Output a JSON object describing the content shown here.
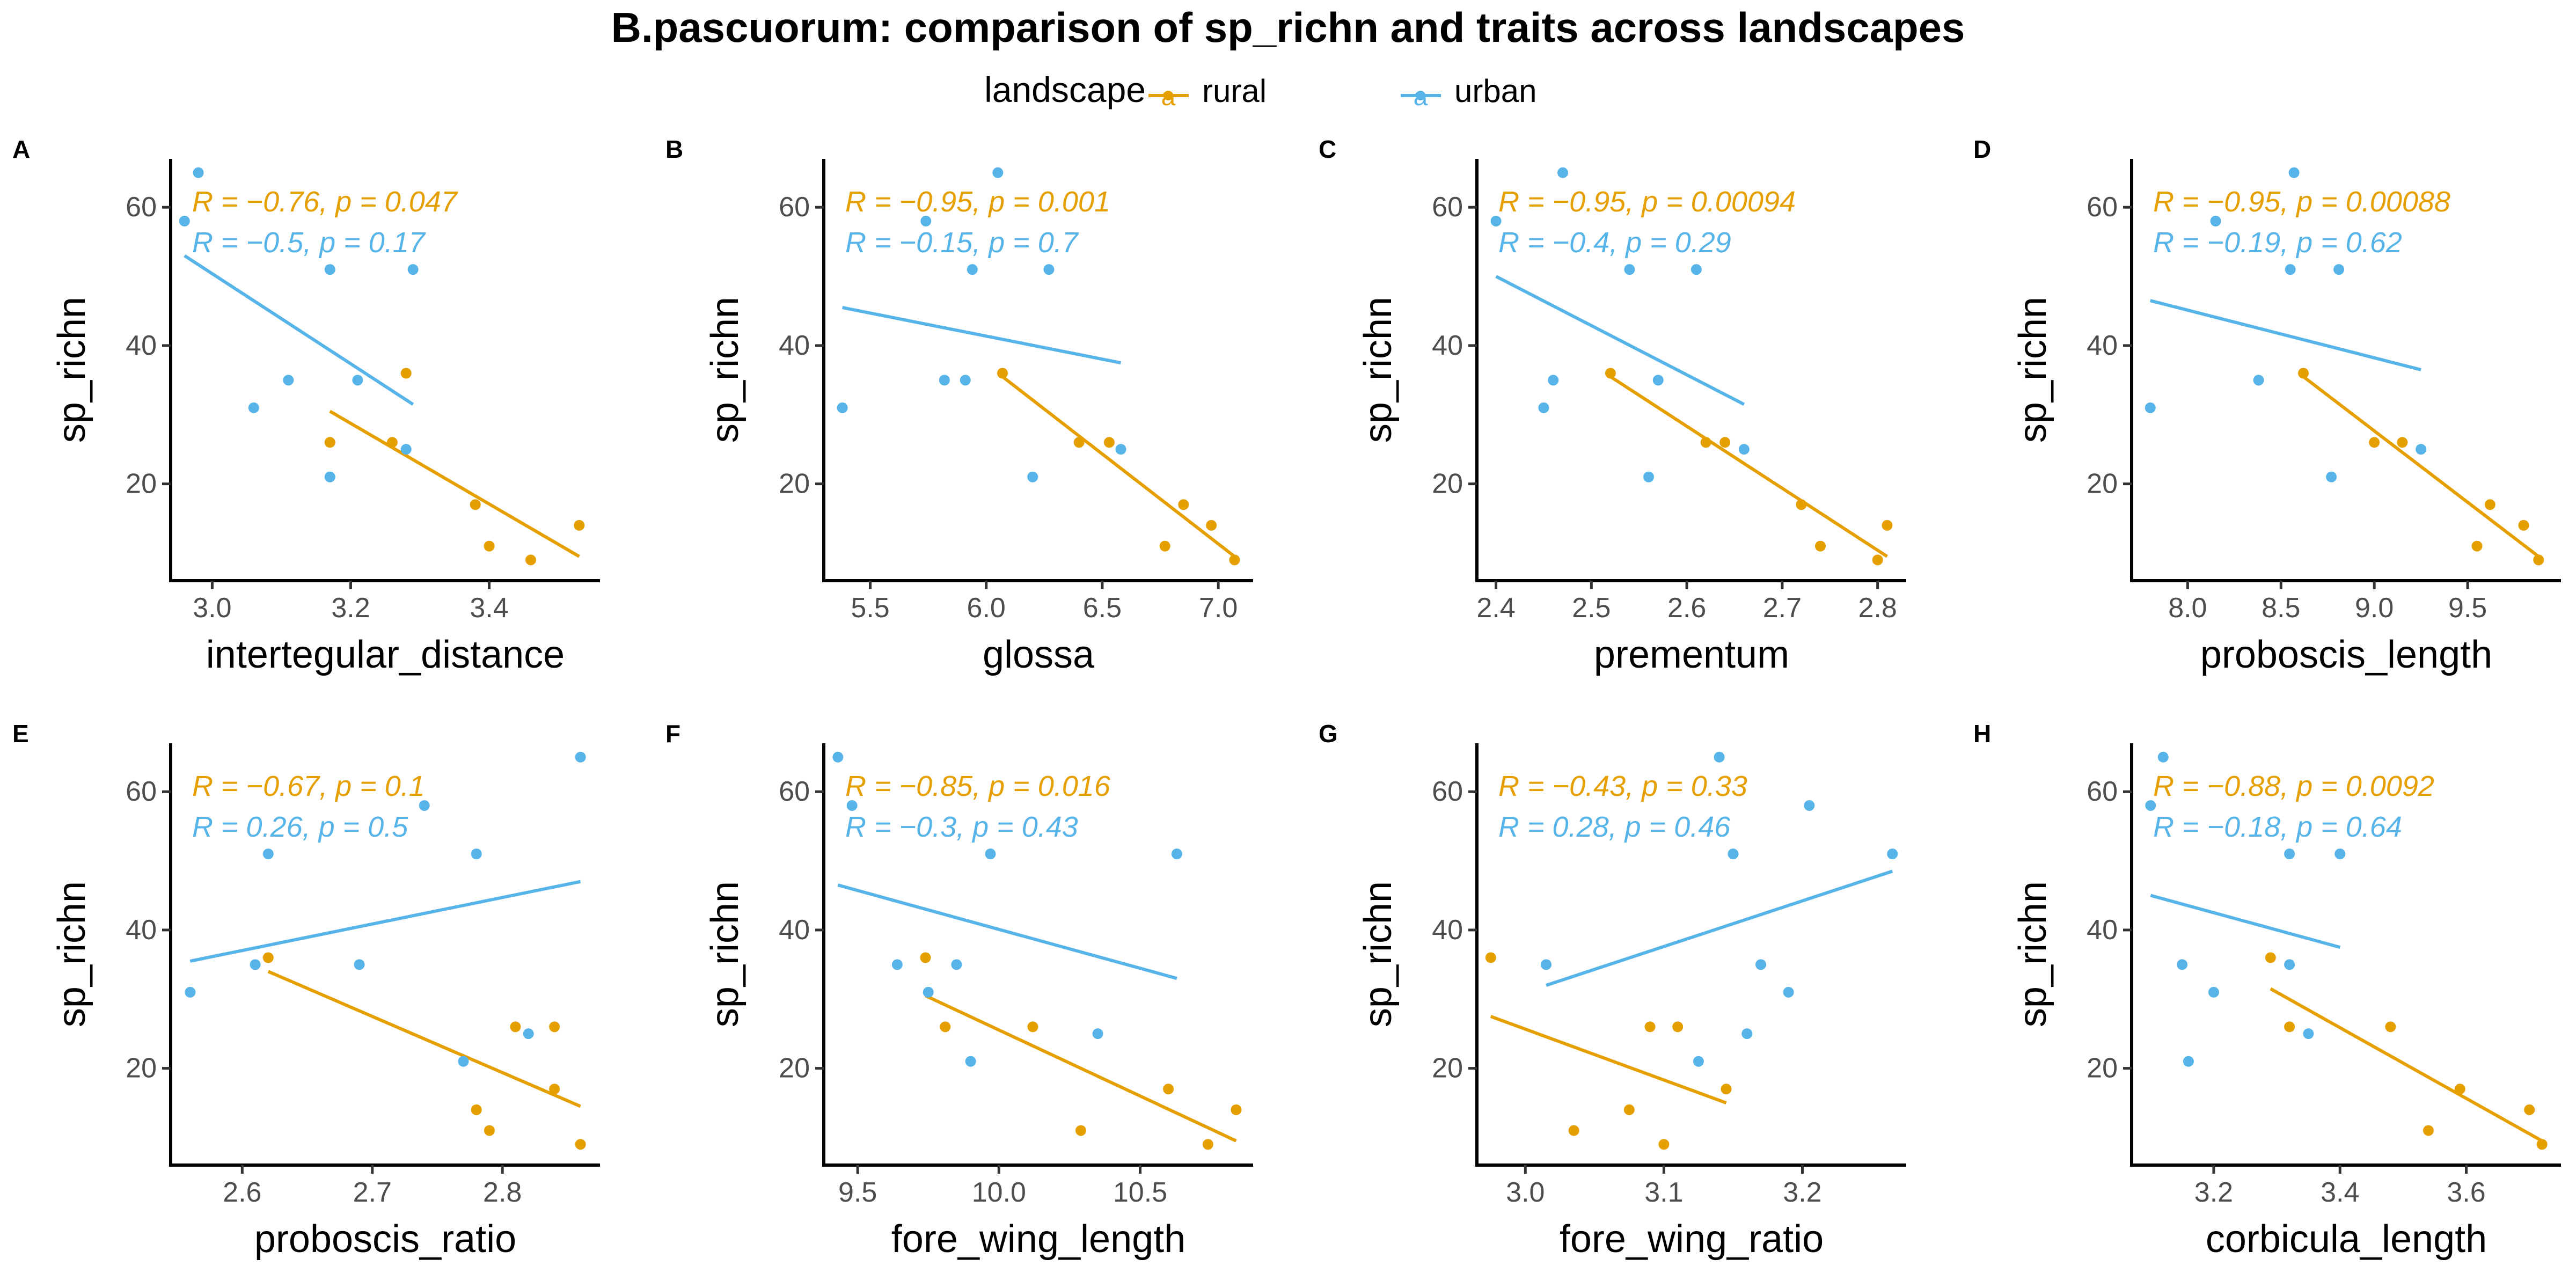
{
  "title": "B.pascuorum: comparison of sp_richn and traits across landscapes",
  "legend": {
    "title": "landscape",
    "key_glyph": "a",
    "items": [
      {
        "label": "rural",
        "color": "#E69F00"
      },
      {
        "label": "urban",
        "color": "#56B4E9"
      }
    ]
  },
  "colors": {
    "rural": "#E69F00",
    "urban": "#56B4E9"
  },
  "chart_data": [
    {
      "type": "scatter",
      "panel": "A",
      "xlabel": "intertegular_distance",
      "ylabel": "sp_richn",
      "xlim": [
        2.94,
        3.56
      ],
      "ylim": [
        6,
        67
      ],
      "xticks": [
        3.0,
        3.2,
        3.4
      ],
      "xtick_labels": [
        "3.0",
        "3.2",
        "3.4"
      ],
      "yticks": [
        20,
        40,
        60
      ],
      "ytick_labels": [
        "20",
        "40",
        "60"
      ],
      "series": [
        {
          "name": "rural",
          "x": [
            3.17,
            3.26,
            3.28,
            3.38,
            3.4,
            3.46,
            3.53
          ],
          "y": [
            26,
            26,
            36,
            17,
            11,
            9,
            14
          ],
          "fit": {
            "x": [
              3.17,
              3.53
            ],
            "y": [
              30.5,
              9.5
            ]
          },
          "stat": "R = −0.76, p = 0.047"
        },
        {
          "name": "urban",
          "x": [
            2.96,
            2.98,
            3.06,
            3.11,
            3.17,
            3.17,
            3.21,
            3.28,
            3.29
          ],
          "y": [
            58,
            65,
            31,
            35,
            51,
            21,
            35,
            25,
            51
          ],
          "fit": {
            "x": [
              2.96,
              3.29
            ],
            "y": [
              53,
              31.5
            ]
          },
          "stat": "R = −0.5, p = 0.17"
        }
      ]
    },
    {
      "type": "scatter",
      "panel": "B",
      "xlabel": "glossa",
      "ylabel": "sp_richn",
      "xlim": [
        5.3,
        7.15
      ],
      "ylim": [
        6,
        67
      ],
      "xticks": [
        5.5,
        6.0,
        6.5,
        7.0
      ],
      "xtick_labels": [
        "5.5",
        "6.0",
        "6.5",
        "7.0"
      ],
      "yticks": [
        20,
        40,
        60
      ],
      "ytick_labels": [
        "20",
        "40",
        "60"
      ],
      "series": [
        {
          "name": "rural",
          "x": [
            6.07,
            6.4,
            6.53,
            6.77,
            6.85,
            6.97,
            7.07
          ],
          "y": [
            36,
            26,
            26,
            11,
            17,
            14,
            9
          ],
          "fit": {
            "x": [
              6.07,
              7.07
            ],
            "y": [
              35.5,
              9.5
            ]
          },
          "stat": "R = −0.95, p = 0.001"
        },
        {
          "name": "urban",
          "x": [
            5.38,
            5.74,
            5.82,
            5.91,
            5.94,
            6.05,
            6.2,
            6.27,
            6.58
          ],
          "y": [
            31,
            58,
            35,
            35,
            51,
            65,
            21,
            51,
            25
          ],
          "fit": {
            "x": [
              5.38,
              6.58
            ],
            "y": [
              45.5,
              37.5
            ]
          },
          "stat": "R = −0.15, p = 0.7"
        }
      ]
    },
    {
      "type": "scatter",
      "panel": "C",
      "xlabel": "prementum",
      "ylabel": "sp_richn",
      "xlim": [
        2.38,
        2.83
      ],
      "ylim": [
        6,
        67
      ],
      "xticks": [
        2.4,
        2.5,
        2.6,
        2.7,
        2.8
      ],
      "xtick_labels": [
        "2.4",
        "2.5",
        "2.6",
        "2.7",
        "2.8"
      ],
      "yticks": [
        20,
        40,
        60
      ],
      "ytick_labels": [
        "20",
        "40",
        "60"
      ],
      "series": [
        {
          "name": "rural",
          "x": [
            2.52,
            2.62,
            2.64,
            2.72,
            2.74,
            2.8,
            2.81
          ],
          "y": [
            36,
            26,
            26,
            17,
            11,
            9,
            14
          ],
          "fit": {
            "x": [
              2.52,
              2.81
            ],
            "y": [
              35.5,
              9.5
            ]
          },
          "stat": "R = −0.95, p = 0.00094"
        },
        {
          "name": "urban",
          "x": [
            2.4,
            2.45,
            2.46,
            2.47,
            2.54,
            2.56,
            2.57,
            2.61,
            2.66
          ],
          "y": [
            58,
            31,
            35,
            65,
            51,
            21,
            35,
            51,
            25
          ],
          "fit": {
            "x": [
              2.4,
              2.66
            ],
            "y": [
              50,
              31.5
            ]
          },
          "stat": "R = −0.4, p = 0.29"
        }
      ]
    },
    {
      "type": "scatter",
      "panel": "D",
      "xlabel": "proboscis_length",
      "ylabel": "sp_richn",
      "xlim": [
        7.7,
        10.0
      ],
      "ylim": [
        6,
        67
      ],
      "xticks": [
        8.0,
        8.5,
        9.0,
        9.5
      ],
      "xtick_labels": [
        "8.0",
        "8.5",
        "9.0",
        "9.5"
      ],
      "yticks": [
        20,
        40,
        60
      ],
      "ytick_labels": [
        "20",
        "40",
        "60"
      ],
      "series": [
        {
          "name": "rural",
          "x": [
            8.62,
            9.0,
            9.15,
            9.55,
            9.62,
            9.8,
            9.88
          ],
          "y": [
            36,
            26,
            26,
            11,
            17,
            14,
            9
          ],
          "fit": {
            "x": [
              8.62,
              9.88
            ],
            "y": [
              35.5,
              9.5
            ]
          },
          "stat": "R = −0.95, p = 0.00088"
        },
        {
          "name": "urban",
          "x": [
            7.8,
            8.15,
            8.38,
            8.55,
            8.57,
            8.77,
            8.81,
            9.25
          ],
          "y": [
            31,
            58,
            35,
            51,
            65,
            21,
            51,
            25
          ],
          "fit": {
            "x": [
              7.8,
              9.25
            ],
            "y": [
              46.5,
              36.5
            ]
          },
          "stat": "R = −0.19, p = 0.62"
        }
      ]
    },
    {
      "type": "scatter",
      "panel": "E",
      "xlabel": "proboscis_ratio",
      "ylabel": "sp_richn",
      "xlim": [
        2.545,
        2.875
      ],
      "ylim": [
        6,
        67
      ],
      "xticks": [
        2.6,
        2.7,
        2.8
      ],
      "xtick_labels": [
        "2.6",
        "2.7",
        "2.8"
      ],
      "yticks": [
        20,
        40,
        60
      ],
      "ytick_labels": [
        "20",
        "40",
        "60"
      ],
      "series": [
        {
          "name": "rural",
          "x": [
            2.62,
            2.78,
            2.79,
            2.81,
            2.84,
            2.84,
            2.86
          ],
          "y": [
            36,
            14,
            11,
            26,
            26,
            17,
            9
          ],
          "fit": {
            "x": [
              2.62,
              2.86
            ],
            "y": [
              34,
              14.5
            ]
          },
          "stat": "R = −0.67, p = 0.1"
        },
        {
          "name": "urban",
          "x": [
            2.56,
            2.61,
            2.62,
            2.69,
            2.74,
            2.77,
            2.78,
            2.82,
            2.86
          ],
          "y": [
            31,
            35,
            51,
            35,
            58,
            21,
            51,
            25,
            65
          ],
          "fit": {
            "x": [
              2.56,
              2.86
            ],
            "y": [
              35.5,
              47
            ]
          },
          "stat": "R = 0.26, p = 0.5"
        }
      ]
    },
    {
      "type": "scatter",
      "panel": "F",
      "xlabel": "fore_wing_length",
      "ylabel": "sp_richn",
      "xlim": [
        9.38,
        10.9
      ],
      "ylim": [
        6,
        67
      ],
      "xticks": [
        9.5,
        10.0,
        10.5
      ],
      "xtick_labels": [
        "9.5",
        "10.0",
        "10.5"
      ],
      "yticks": [
        20,
        40,
        60
      ],
      "ytick_labels": [
        "20",
        "40",
        "60"
      ],
      "series": [
        {
          "name": "rural",
          "x": [
            9.74,
            9.81,
            10.12,
            10.29,
            10.6,
            10.74,
            10.84
          ],
          "y": [
            36,
            26,
            26,
            11,
            17,
            9,
            14
          ],
          "fit": {
            "x": [
              9.74,
              10.84
            ],
            "y": [
              30.5,
              9.5
            ]
          },
          "stat": "R = −0.85, p = 0.016"
        },
        {
          "name": "urban",
          "x": [
            9.43,
            9.48,
            9.64,
            9.75,
            9.85,
            9.9,
            9.97,
            10.35,
            10.63
          ],
          "y": [
            65,
            58,
            35,
            31,
            35,
            21,
            51,
            25,
            51
          ],
          "fit": {
            "x": [
              9.43,
              10.63
            ],
            "y": [
              46.5,
              33
            ]
          },
          "stat": "R = −0.3, p = 0.43"
        }
      ]
    },
    {
      "type": "scatter",
      "panel": "G",
      "xlabel": "fore_wing_ratio",
      "ylabel": "sp_richn",
      "xlim": [
        2.965,
        3.275
      ],
      "ylim": [
        6,
        67
      ],
      "xticks": [
        3.0,
        3.1,
        3.2
      ],
      "xtick_labels": [
        "3.0",
        "3.1",
        "3.2"
      ],
      "yticks": [
        20,
        40,
        60
      ],
      "ytick_labels": [
        "20",
        "40",
        "60"
      ],
      "series": [
        {
          "name": "rural",
          "x": [
            2.975,
            3.035,
            3.075,
            3.09,
            3.1,
            3.11,
            3.145
          ],
          "y": [
            36,
            11,
            14,
            26,
            9,
            26,
            17
          ],
          "fit": {
            "x": [
              2.975,
              3.145
            ],
            "y": [
              27.5,
              15
            ]
          },
          "stat": "R = −0.43, p = 0.33"
        },
        {
          "name": "urban",
          "x": [
            3.015,
            3.125,
            3.14,
            3.15,
            3.16,
            3.17,
            3.19,
            3.205,
            3.265
          ],
          "y": [
            35,
            21,
            65,
            51,
            25,
            35,
            31,
            58,
            51
          ],
          "fit": {
            "x": [
              3.015,
              3.265
            ],
            "y": [
              32,
              48.5
            ]
          },
          "stat": "R = 0.28, p = 0.46"
        }
      ]
    },
    {
      "type": "scatter",
      "panel": "H",
      "xlabel": "corbicula_length",
      "ylabel": "sp_richn",
      "xlim": [
        3.07,
        3.75
      ],
      "ylim": [
        6,
        67
      ],
      "xticks": [
        3.2,
        3.4,
        3.6
      ],
      "xtick_labels": [
        "3.2",
        "3.4",
        "3.6"
      ],
      "yticks": [
        20,
        40,
        60
      ],
      "ytick_labels": [
        "20",
        "40",
        "60"
      ],
      "series": [
        {
          "name": "rural",
          "x": [
            3.29,
            3.32,
            3.48,
            3.54,
            3.59,
            3.7,
            3.72
          ],
          "y": [
            36,
            26,
            26,
            11,
            17,
            14,
            9
          ],
          "fit": {
            "x": [
              3.29,
              3.72
            ],
            "y": [
              31.5,
              9.5
            ]
          },
          "stat": "R = −0.88, p = 0.0092"
        },
        {
          "name": "urban",
          "x": [
            3.1,
            3.12,
            3.15,
            3.16,
            3.2,
            3.32,
            3.32,
            3.35,
            3.4
          ],
          "y": [
            58,
            65,
            35,
            21,
            31,
            51,
            35,
            25,
            51
          ],
          "fit": {
            "x": [
              3.1,
              3.4
            ],
            "y": [
              45,
              37.5
            ]
          },
          "stat": "R = −0.18, p = 0.64"
        }
      ]
    }
  ]
}
